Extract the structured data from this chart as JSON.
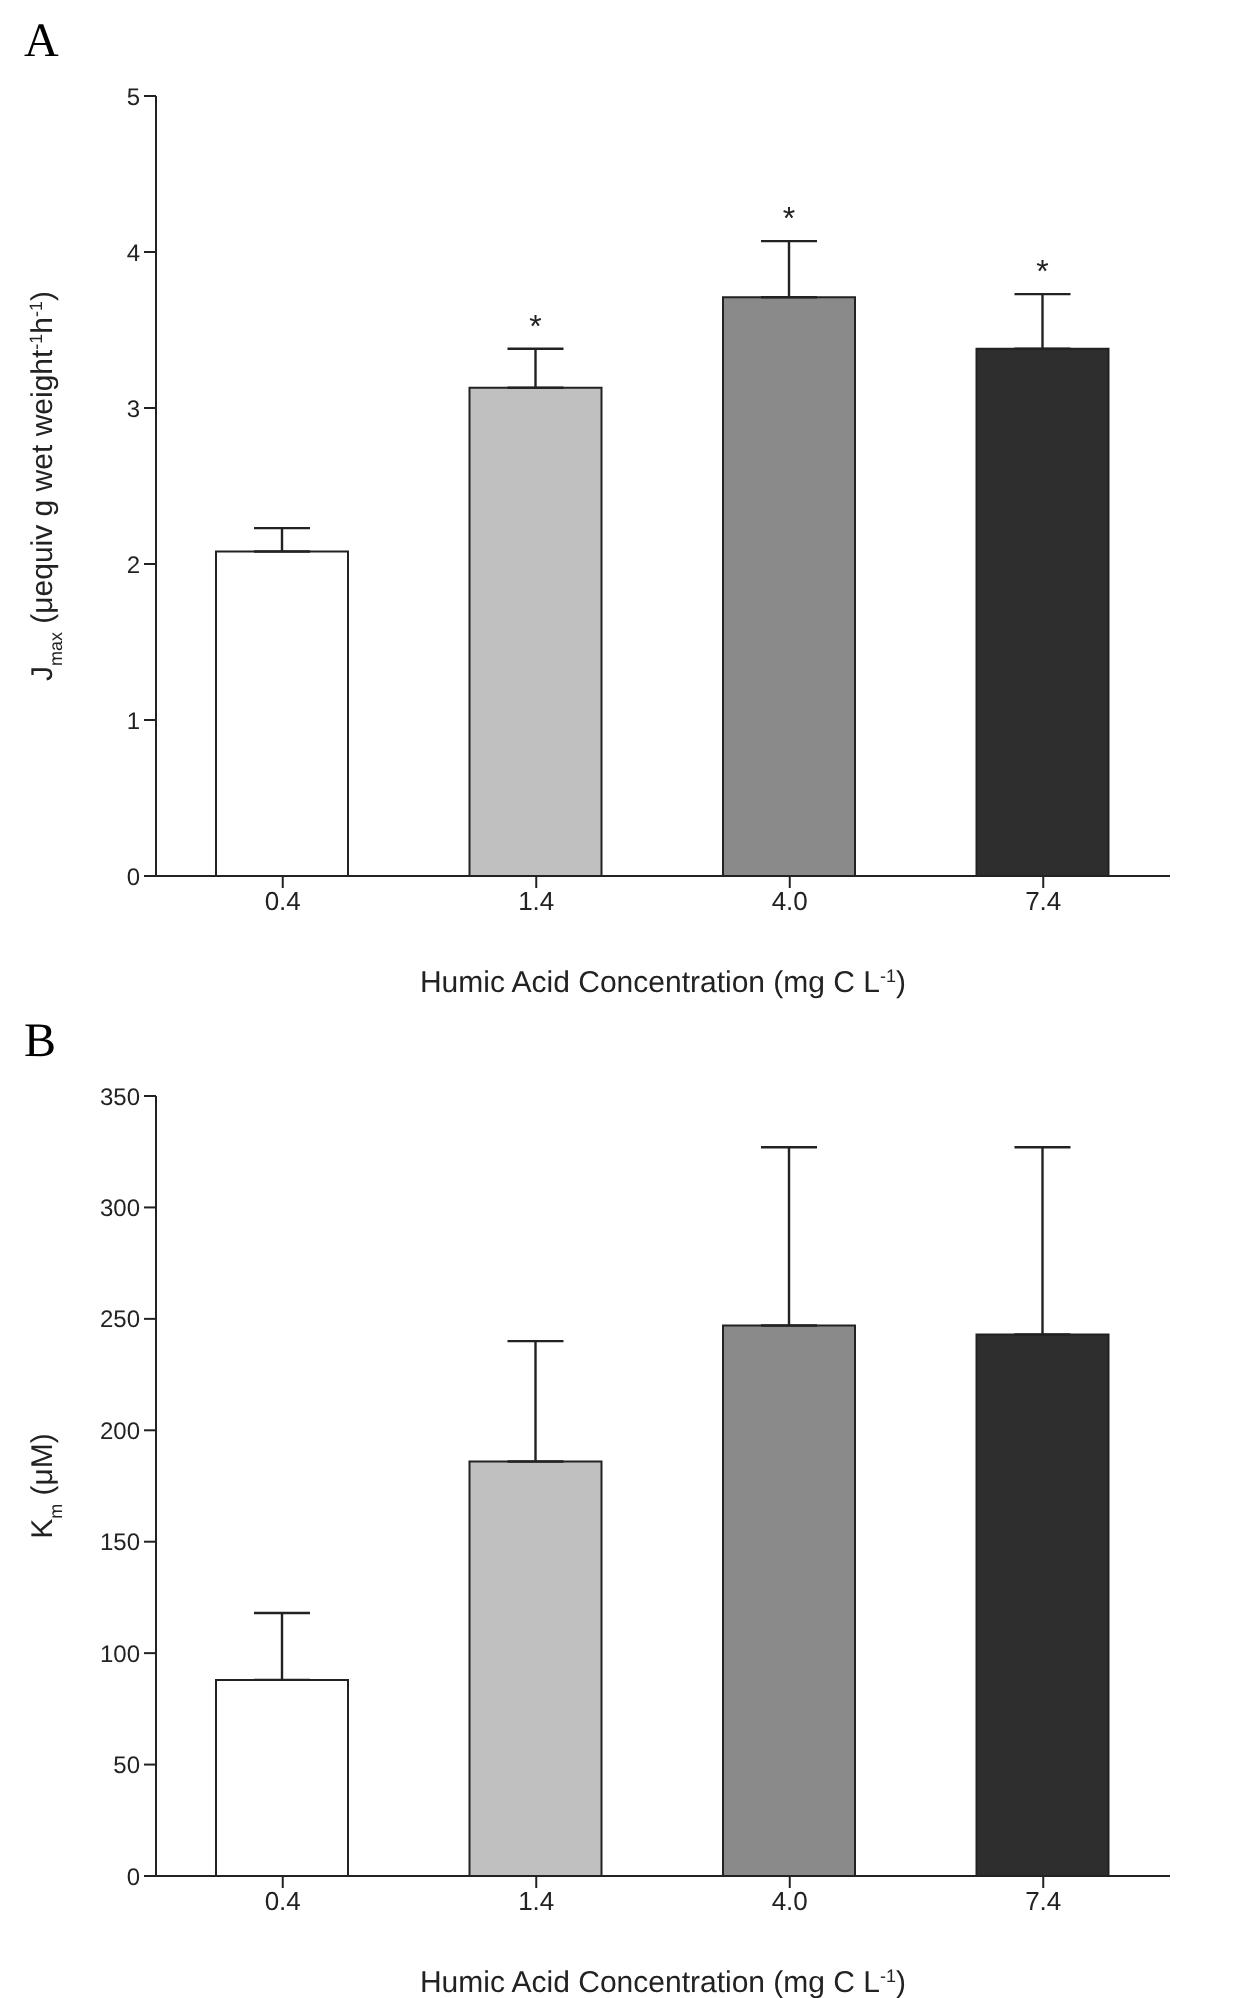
{
  "chart_data": [
    {
      "type": "bar",
      "title": "A",
      "xlabel": "Humic Acid Concentration (mg C L$^{-1}$)",
      "ylabel": "J$_{max}$ (μequiv g wet weight$^{-1}$h$^{-1}$)",
      "categories": [
        "0.4",
        "1.4",
        "4.0",
        "7.4"
      ],
      "values": [
        2.08,
        3.13,
        3.71,
        3.38
      ],
      "colors": [
        "#ffffff",
        "#c0c0c0",
        "#8a8a8a",
        "#2e2e2e"
      ],
      "errors": [
        [
          2.08,
          2.23
        ],
        [
          3.13,
          3.38
        ],
        [
          3.71,
          4.07
        ],
        [
          3.38,
          3.73
        ]
      ],
      "ylim": [
        0,
        5
      ],
      "yticks": [
        0,
        1,
        2,
        3,
        4,
        5
      ],
      "grid": false,
      "legend": false,
      "value_labels": [
        null,
        "*",
        "*",
        "*"
      ]
    },
    {
      "type": "bar",
      "title": "B",
      "xlabel": "Humic Acid Concentration (mg C L$^{-1}$)",
      "ylabel": "K$_{m}$ (μM)",
      "categories": [
        "0.4",
        "1.4",
        "4.0",
        "7.4"
      ],
      "values": [
        88,
        186,
        247,
        243
      ],
      "colors": [
        "#ffffff",
        "#c0c0c0",
        "#8a8a8a",
        "#2e2e2e"
      ],
      "errors": [
        [
          88,
          118
        ],
        [
          186,
          240
        ],
        [
          247,
          327
        ],
        [
          243,
          327
        ]
      ],
      "ylim": [
        0,
        350
      ],
      "yticks": [
        0,
        50,
        100,
        150,
        200,
        250,
        300,
        350
      ],
      "grid": false,
      "legend": false
    }
  ]
}
